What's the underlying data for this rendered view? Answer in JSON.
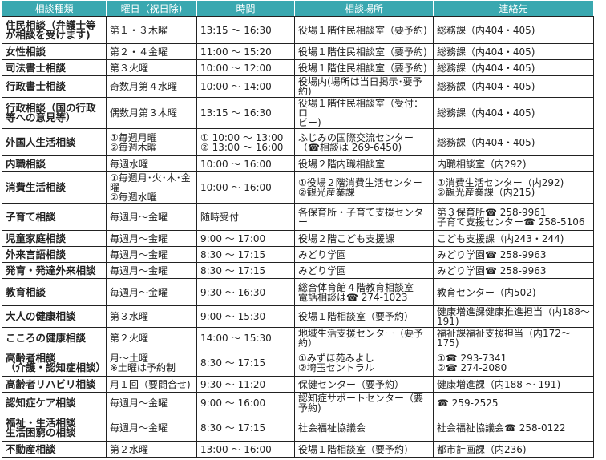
{
  "header_color": "#3aa8b0",
  "columns": [
    "相談種類",
    "曜日（祝日除)",
    "時間",
    "相談場所",
    "連絡先"
  ],
  "rows": [
    {
      "cat": "住民相談（弁護士等\nが相談を受けます)",
      "day": "第１・３木曜",
      "time": "13:15 〜 16:30",
      "place": "役場１階住民相談室（要予約)",
      "contact": "総務課（内404・405)",
      "lines": 2
    },
    {
      "cat": "女性相談",
      "day": "第２・４金曜",
      "time": "11:00 〜 15:20",
      "place": "役場１階住民相談室（要予約)",
      "contact": "総務課（内404・405)",
      "lines": 1
    },
    {
      "cat": "司法書士相談",
      "day": "第３火曜",
      "time": "10:00 〜 12:00",
      "place": "役場１階住民相談室（要予約)",
      "contact": "総務課（内404・405)",
      "lines": 1
    },
    {
      "cat": "行政書士相談",
      "day": "奇数月第４水曜",
      "time": "10:00 〜 14:00",
      "place": "役場内(場所は当日掲示･要予約)",
      "contact": "総務課（内404・405)",
      "lines": 1
    },
    {
      "cat": "行政相談（国の行政\n等への意見等）",
      "day": "偶数月第３木曜",
      "time": "13:15 〜 16:30",
      "place": "役場１階住民相談室（受付：ロ\nビー)",
      "contact": "総務課（内404・405)",
      "lines": 2
    },
    {
      "cat": "外国人生活相談",
      "day": "①毎週月曜\n②毎週木曜",
      "time": "① 10:00 〜 13:00\n② 13:00 〜 16:00",
      "place": "ふじみの国際交流センター\n（☎相談は 269-6450)",
      "contact": "総務課（内404・405)",
      "lines": 2
    },
    {
      "cat": "内職相談",
      "day": "毎週水曜",
      "time": "10:00 〜 16:00",
      "place": "役場２階内職相談室",
      "contact": "内職相談室（内292)",
      "lines": 1
    },
    {
      "cat": "消費生活相談",
      "day": "①毎週月･火･木･金曜\n②毎週水曜",
      "time": "10:00 〜 16:00",
      "place": "①役場２階消費生活センター\n②観光産業課",
      "contact": "①消費生活センター（内292)\n②観光産業課（内215)",
      "lines": 2
    },
    {
      "cat": "子育て相談",
      "day": "毎週月〜金曜",
      "time": "随時受付",
      "place": "各保育所・子育て支援センター",
      "contact": "第３保育所☎ 258-9961\n子育て支援センター☎ 258-5106",
      "lines": 2
    },
    {
      "cat": "児童家庭相談",
      "day": "毎週月〜金曜",
      "time": "9:00 〜 17:00",
      "place": "役場２階こども支援課",
      "contact": "こども支援課（内243・244)",
      "lines": 1
    },
    {
      "cat": "外来言語相談",
      "day": "毎週月〜金曜",
      "time": "8:30 〜 17:15",
      "place": "みどり学園",
      "contact": "みどり学園☎ 258-9963",
      "lines": 1
    },
    {
      "cat": "発育・発達外来相談",
      "day": "毎週月〜金曜",
      "time": "8:30 〜 17:15",
      "place": "みどり学園",
      "contact": "みどり学園☎ 258-9963",
      "lines": 1
    },
    {
      "cat": "教育相談",
      "day": "毎週月〜金曜",
      "time": "9:30 〜 16:30",
      "place": "総合体育館４階教育相談室\n電話相談は☎ 274-1023",
      "contact": "教育センター（内502)",
      "lines": 2
    },
    {
      "cat": "大人の健康相談",
      "day": "第３水曜",
      "time": "9:00 〜 15:30",
      "place": "役場１階相談室（要予約）",
      "contact": "健康増進課健康推進担当（内188〜191)",
      "lines": 1
    },
    {
      "cat": "こころの健康相談",
      "day": "第２火曜",
      "time": "14:00 〜 15:30",
      "place": "地域生活支援センター（要予約）",
      "contact": "福祉課福祉支援担当（内172〜175)",
      "lines": 1
    },
    {
      "cat": "高齢者相談\n（介護・認知症相談）",
      "day": "月〜土曜\n※土曜は予約制",
      "time": "8:30 〜 17:15",
      "place": "①みずほ苑みよし\n②埼玉セントラル",
      "contact": "①☎ 293-7341\n②☎ 274-2080",
      "lines": 2
    },
    {
      "cat": "高齢者リハビリ相談",
      "day": "月１回（要問合せ)",
      "time": "9:30 〜 11:20",
      "place": "保健センター（要予約）",
      "contact": "健康増進課（内188 〜 191)",
      "lines": 1
    },
    {
      "cat": "認知症ケア相談",
      "day": "毎週月〜金曜",
      "time": "9:00 〜 16:00",
      "place": "認知症サポートセンター（要予約)",
      "contact": "☎ 259-2525",
      "lines": 1
    },
    {
      "cat": "福祉・生活相談\n生活困窮の相談",
      "day": "毎週月〜金曜",
      "time": "8:30 〜 17:15",
      "place": "社会福祉協議会",
      "contact": "社会福祉協議会☎ 258-0122",
      "lines": 2
    },
    {
      "cat": "不動産相談",
      "day": "第２水曜",
      "time": "13:00 〜 16:00",
      "place": "役場１階相談室（要予約)",
      "contact": "都市計画課（内236)",
      "lines": 1
    }
  ]
}
